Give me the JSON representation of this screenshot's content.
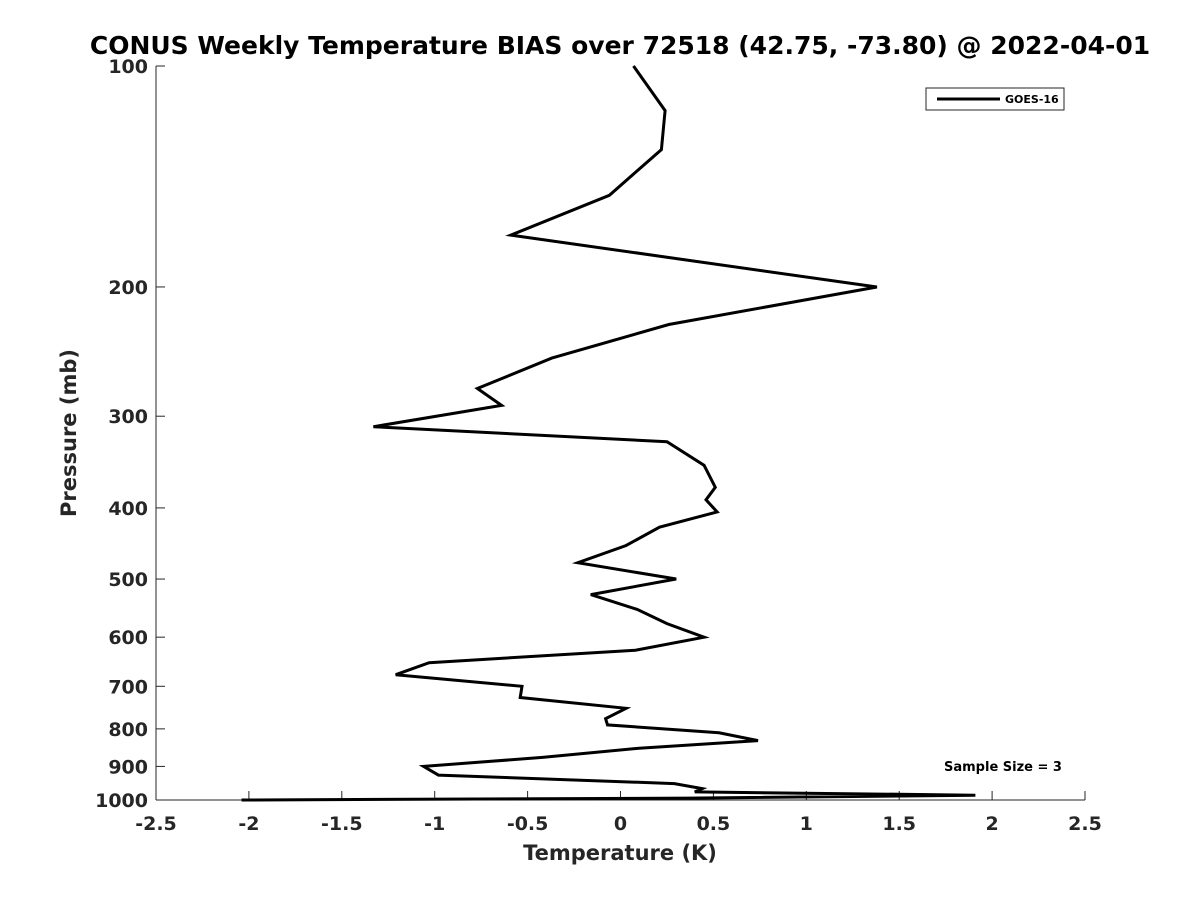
{
  "chart_data": {
    "type": "line",
    "title": "CONUS Weekly Temperature BIAS over 72518 (42.75, -73.80) @ 2022-04-01",
    "xlabel": "Temperature (K)",
    "ylabel": "Pressure (mb)",
    "xlim": [
      -2.5,
      2.5
    ],
    "ylim": [
      1000,
      100
    ],
    "y_scale": "log",
    "x_ticks": [
      -2.5,
      -2,
      -1.5,
      -1,
      -0.5,
      0,
      0.5,
      1,
      1.5,
      2,
      2.5
    ],
    "x_tick_labels": [
      "-2.5",
      "-2",
      "-1.5",
      "-1",
      "-0.5",
      "0",
      "0.5",
      "1",
      "1.5",
      "2",
      "2.5"
    ],
    "y_ticks": [
      100,
      200,
      300,
      400,
      500,
      600,
      700,
      800,
      900,
      1000
    ],
    "y_tick_labels": [
      "100",
      "200",
      "300",
      "400",
      "500",
      "600",
      "700",
      "800",
      "900",
      "1000"
    ],
    "grid": false,
    "legend_position": "top-right",
    "annotation": "Sample Size = 3",
    "series": [
      {
        "name": "GOES-16",
        "color": "#000000",
        "x": [
          0.07,
          0.24,
          0.22,
          -0.06,
          -0.59,
          1.38,
          0.26,
          -0.37,
          -0.77,
          -0.64,
          -1.33,
          0.25,
          0.45,
          0.51,
          0.46,
          0.52,
          0.21,
          0.03,
          -0.23,
          0.3,
          -0.16,
          0.09,
          0.25,
          0.45,
          0.08,
          -1.03,
          -1.21,
          -0.53,
          -0.54,
          0.03,
          -0.08,
          -0.07,
          0.53,
          0.74,
          0.1,
          -0.42,
          -1.06,
          -0.98,
          0.29,
          0.44,
          0.4,
          1.91,
          0.37,
          -2.04
        ],
        "y": [
          100,
          115,
          130,
          150,
          170,
          200,
          225,
          250,
          275,
          290,
          310,
          325,
          350,
          375,
          390,
          405,
          425,
          450,
          475,
          500,
          525,
          550,
          575,
          600,
          625,
          650,
          675,
          700,
          725,
          750,
          775,
          790,
          810,
          830,
          850,
          875,
          900,
          925,
          950,
          965,
          975,
          985,
          994,
          1000
        ]
      }
    ]
  }
}
